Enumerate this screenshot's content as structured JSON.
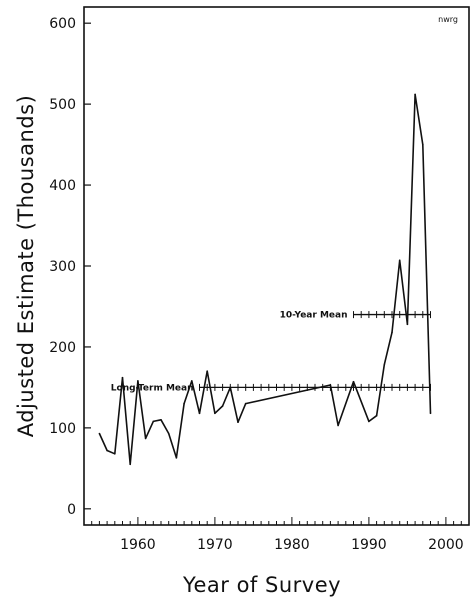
{
  "chart_data": {
    "type": "line",
    "xlabel": "Year of Survey",
    "ylabel": "Adjusted Estimate (Thousands)",
    "corner_label": "nwrg",
    "xlim": [
      1953,
      2003
    ],
    "ylim": [
      -20,
      620
    ],
    "xticks": [
      1960,
      1970,
      1980,
      1990,
      2000
    ],
    "yticks": [
      0,
      100,
      200,
      300,
      400,
      500,
      600
    ],
    "grid": false,
    "series": [
      {
        "values": [
          [
            1955,
            93
          ],
          [
            1956,
            72
          ],
          [
            1957,
            68
          ],
          [
            1958,
            162
          ],
          [
            1959,
            55
          ],
          [
            1960,
            158
          ],
          [
            1961,
            87
          ],
          [
            1962,
            108
          ],
          [
            1963,
            110
          ],
          [
            1964,
            93
          ],
          [
            1965,
            63
          ],
          [
            1966,
            130
          ],
          [
            1967,
            158
          ],
          [
            1968,
            118
          ],
          [
            1969,
            170
          ],
          [
            1970,
            118
          ],
          [
            1971,
            127
          ],
          [
            1972,
            150
          ],
          [
            1973,
            107
          ],
          [
            1974,
            130
          ],
          [
            1985,
            153
          ],
          [
            1986,
            103
          ],
          [
            1988,
            157
          ],
          [
            1990,
            108
          ],
          [
            1991,
            115
          ],
          [
            1992,
            178
          ],
          [
            1993,
            218
          ],
          [
            1994,
            307
          ],
          [
            1995,
            228
          ],
          [
            1996,
            512
          ],
          [
            1997,
            450
          ],
          [
            1998,
            118
          ]
        ]
      }
    ],
    "reference_lines": [
      {
        "label": "Long-Term Mean",
        "value": 150,
        "x_start": 1968,
        "x_end": 1998
      },
      {
        "label": "10-Year Mean",
        "value": 240,
        "x_start": 1988,
        "x_end": 1998
      }
    ]
  }
}
